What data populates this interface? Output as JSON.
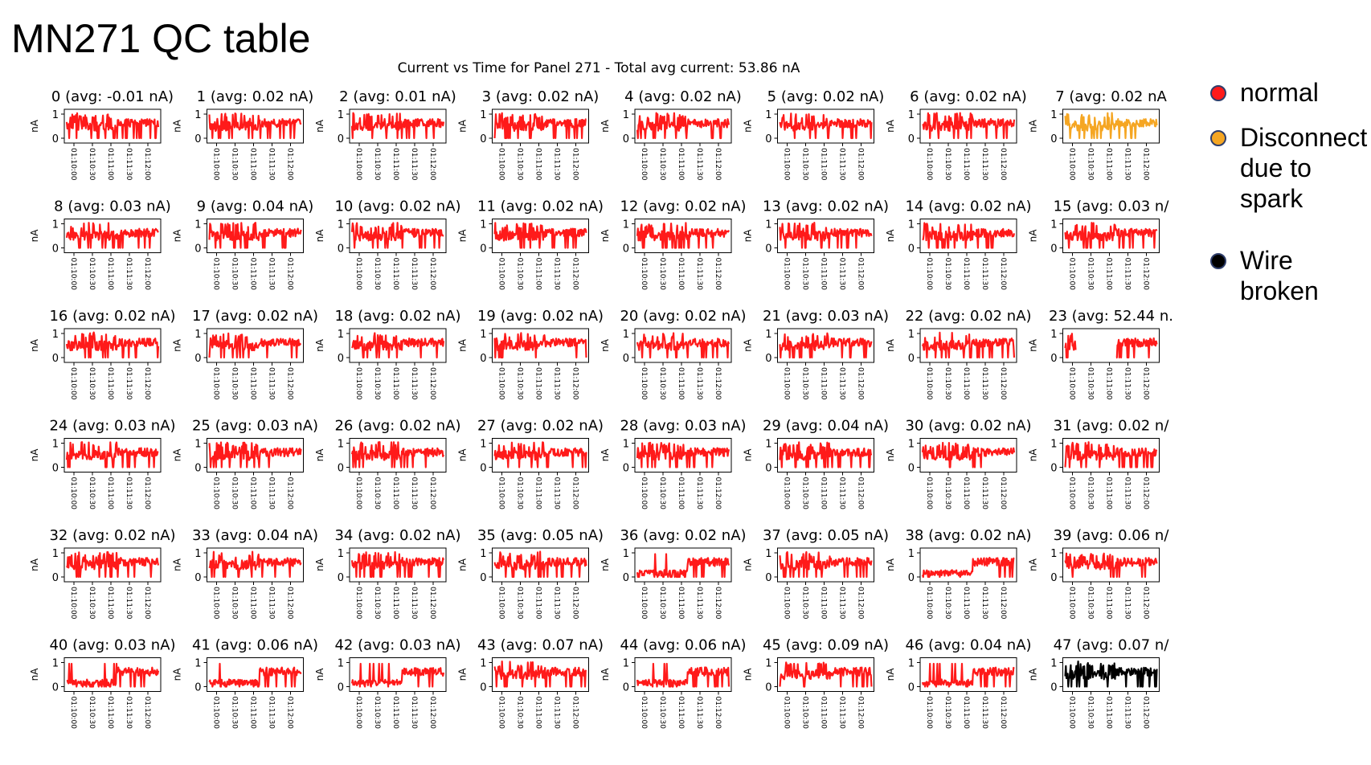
{
  "page_title": "MN271 QC table",
  "legend": [
    {
      "label": "normal",
      "color": "#ff1a1a"
    },
    {
      "label": "Disconnect\ndue to\nspark",
      "color": "#f5a623"
    },
    {
      "label": "Wire\nbroken",
      "color": "#000000"
    }
  ],
  "chart_data": {
    "type": "line",
    "title": "Current vs Time for Panel 271 - Total avg current: 53.86 nA",
    "grid": "6x8",
    "ylabel": "nA",
    "ylim": [
      0,
      1
    ],
    "yticks": [
      "0",
      "1"
    ],
    "xticks": [
      "01:10:00",
      "01:10:30",
      "01:11:00",
      "01:11:30",
      "01:12:00"
    ],
    "panels": [
      {
        "title": "0 (avg: -0.01 nA)",
        "status": "normal"
      },
      {
        "title": "1 (avg: 0.02 nA)",
        "status": "normal"
      },
      {
        "title": "2 (avg: 0.01 nA)",
        "status": "normal"
      },
      {
        "title": "3 (avg: 0.02 nA)",
        "status": "normal"
      },
      {
        "title": "4 (avg: 0.02 nA)",
        "status": "normal"
      },
      {
        "title": "5 (avg: 0.02 nA)",
        "status": "normal"
      },
      {
        "title": "6 (avg: 0.02 nA)",
        "status": "normal"
      },
      {
        "title": "7 (avg: 0.02 nA",
        "status": "spark"
      },
      {
        "title": "8 (avg: 0.03 nA)",
        "status": "normal"
      },
      {
        "title": "9 (avg: 0.04 nA)",
        "status": "normal"
      },
      {
        "title": "10 (avg: 0.02 nA)",
        "status": "normal"
      },
      {
        "title": "11 (avg: 0.02 nA)",
        "status": "normal"
      },
      {
        "title": "12 (avg: 0.02 nA)",
        "status": "normal"
      },
      {
        "title": "13 (avg: 0.02 nA)",
        "status": "normal"
      },
      {
        "title": "14 (avg: 0.02 nA)",
        "status": "normal"
      },
      {
        "title": "15 (avg: 0.03 n/",
        "status": "normal"
      },
      {
        "title": "16 (avg: 0.02 nA)",
        "status": "normal"
      },
      {
        "title": "17 (avg: 0.02 nA)",
        "status": "normal"
      },
      {
        "title": "18 (avg: 0.02 nA)",
        "status": "normal"
      },
      {
        "title": "19 (avg: 0.02 nA)",
        "status": "normal"
      },
      {
        "title": "20 (avg: 0.02 nA)",
        "status": "normal"
      },
      {
        "title": "21 (avg: 0.03 nA)",
        "status": "normal"
      },
      {
        "title": "22 (avg: 0.02 nA)",
        "status": "normal"
      },
      {
        "title": "23 (avg: 52.44 n.",
        "status": "normal",
        "gap": [
          0.12,
          0.55
        ]
      },
      {
        "title": "24 (avg: 0.03 nA)",
        "status": "normal"
      },
      {
        "title": "25 (avg: 0.03 nA)",
        "status": "normal"
      },
      {
        "title": "26 (avg: 0.02 nA)",
        "status": "normal"
      },
      {
        "title": "27 (avg: 0.02 nA)",
        "status": "normal"
      },
      {
        "title": "28 (avg: 0.03 nA)",
        "status": "normal"
      },
      {
        "title": "29 (avg: 0.04 nA)",
        "status": "normal"
      },
      {
        "title": "30 (avg: 0.02 nA)",
        "status": "normal"
      },
      {
        "title": "31 (avg: 0.02 n/",
        "status": "normal"
      },
      {
        "title": "32 (avg: 0.02 nA)",
        "status": "normal"
      },
      {
        "title": "33 (avg: 0.04 nA)",
        "status": "normal"
      },
      {
        "title": "34 (avg: 0.02 nA)",
        "status": "normal"
      },
      {
        "title": "35 (avg: 0.05 nA)",
        "status": "normal"
      },
      {
        "title": "36 (avg: 0.02 nA)",
        "status": "normal",
        "low_start": true
      },
      {
        "title": "37 (avg: 0.05 nA)",
        "status": "normal"
      },
      {
        "title": "38 (avg: 0.02 nA)",
        "status": "normal",
        "low_start": true
      },
      {
        "title": "39 (avg: 0.06 n/",
        "status": "normal"
      },
      {
        "title": "40 (avg: 0.03 nA)",
        "status": "normal",
        "low_start": true
      },
      {
        "title": "41 (avg: 0.06 nA)",
        "status": "normal",
        "low_start": true
      },
      {
        "title": "42 (avg: 0.03 nA)",
        "status": "normal",
        "low_start": true
      },
      {
        "title": "43 (avg: 0.07 nA)",
        "status": "normal"
      },
      {
        "title": "44 (avg: 0.06 nA)",
        "status": "normal",
        "low_start": true
      },
      {
        "title": "45 (avg: 0.09 nA)",
        "status": "normal"
      },
      {
        "title": "46 (avg: 0.04 nA)",
        "status": "normal",
        "low_start": true
      },
      {
        "title": "47 (avg: 0.07 n/",
        "status": "broken"
      }
    ]
  }
}
